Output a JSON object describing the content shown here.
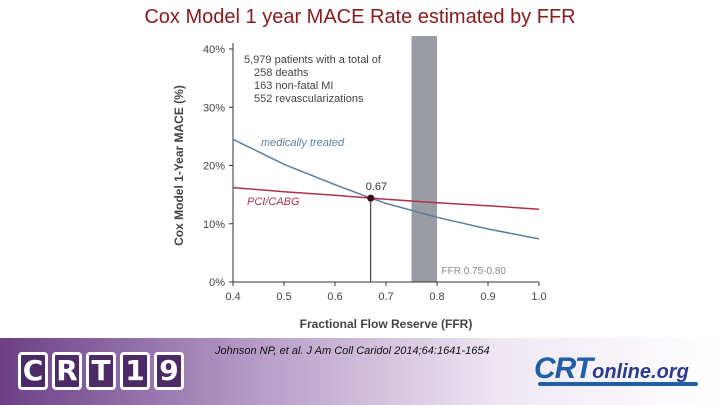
{
  "slide_title": "Cox Model 1 year MACE Rate estimated by FFR",
  "citation": "Johnson NP, et al. J Am Coll Caridol 2014;64:1641-1654",
  "logo_left": {
    "letters": [
      "C",
      "R",
      "T",
      "1",
      "9"
    ],
    "color": "#4b2a66"
  },
  "logo_right": {
    "main": "CRT",
    "suffix": "online.org",
    "color": "#1f5fa8"
  },
  "chart_data": {
    "type": "line",
    "xlabel": "Fractional Flow Reserve (FFR)",
    "ylabel": "Cox Model 1-Year MACE (%)",
    "xlim": [
      0.4,
      1.0
    ],
    "ylim": [
      0,
      40
    ],
    "xticks": [
      0.4,
      0.5,
      0.6,
      0.7,
      0.8,
      0.9,
      1.0
    ],
    "xtick_labels": [
      "0.4",
      "0.5",
      "0.6",
      "0.7",
      "0.8",
      "0.9",
      "1.0"
    ],
    "yticks": [
      0,
      10,
      20,
      30,
      40
    ],
    "ytick_labels": [
      "0%",
      "10%",
      "20%",
      "30%",
      "40%"
    ],
    "series": [
      {
        "name": "medically treated",
        "color": "#5b7d99",
        "x": [
          0.4,
          0.5,
          0.6,
          0.67,
          0.7,
          0.8,
          0.9,
          1.0
        ],
        "y": [
          24.5,
          20.2,
          16.7,
          14.4,
          13.5,
          11.1,
          9.1,
          7.4
        ]
      },
      {
        "name": "PCI/CABG",
        "color": "#b0304a",
        "x": [
          0.4,
          0.5,
          0.6,
          0.67,
          0.7,
          0.8,
          0.9,
          1.0
        ],
        "y": [
          16.2,
          15.5,
          14.9,
          14.4,
          14.2,
          13.6,
          13.1,
          12.5
        ]
      }
    ],
    "band": {
      "x_start": 0.75,
      "x_end": 0.8,
      "label": "FFR 0.75-0.80",
      "color": "#9a9ca3"
    },
    "crossover": {
      "x": 0.67,
      "y": 14.4,
      "label": "0.67"
    },
    "annotation": {
      "lines": [
        "5,979 patients with a total of",
        "258 deaths",
        "163 non-fatal MI",
        "552 revascularizations"
      ]
    }
  }
}
